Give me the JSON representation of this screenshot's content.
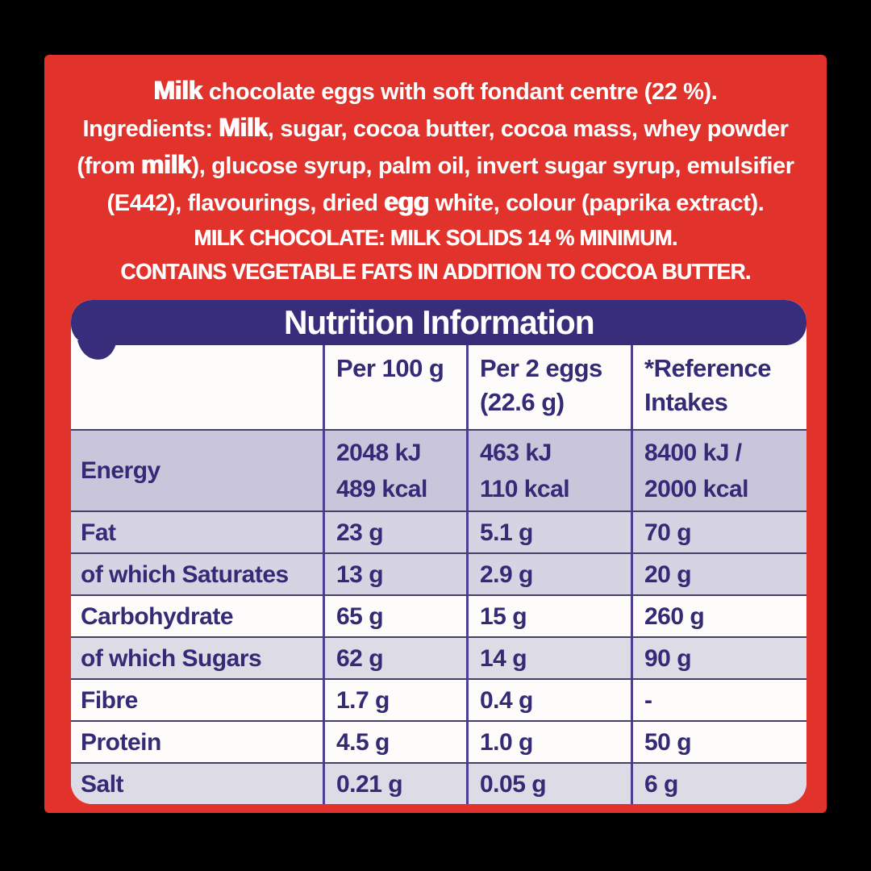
{
  "colors": {
    "bg": "#000000",
    "red": "#e1332c",
    "banner": "#382d7b",
    "ink": "#342a76",
    "divider": "#4c4095",
    "rule": "#474066",
    "panel": "#fdfcfa",
    "shade-dark": "#c9c6db",
    "shade-medium": "#d6d3e3",
    "shade-light": "#dddbe5"
  },
  "description": {
    "lines": [
      {
        "segments": [
          {
            "text": "Milk",
            "allergen": true
          },
          {
            "text": " chocolate eggs with soft fondant centre (22 %)."
          }
        ]
      },
      {
        "segments": [
          {
            "text": "Ingredients: "
          },
          {
            "text": "Milk",
            "allergen": true
          },
          {
            "text": ", sugar, cocoa butter, cocoa mass, whey powder"
          }
        ]
      },
      {
        "segments": [
          {
            "text": "(from "
          },
          {
            "text": "milk",
            "allergen": true
          },
          {
            "text": "), glucose syrup, palm oil, invert sugar syrup, emulsifier"
          }
        ]
      },
      {
        "segments": [
          {
            "text": "(E442), flavourings, dried "
          },
          {
            "text": "egg",
            "allergen": true
          },
          {
            "text": " white, colour (paprika extract)."
          }
        ]
      },
      {
        "caps": true,
        "segments": [
          {
            "text": "MILK CHOCOLATE: MILK SOLIDS 14 % MINIMUM."
          }
        ]
      },
      {
        "caps": true,
        "segments": [
          {
            "text": "CONTAINS VEGETABLE FATS IN ADDITION TO COCOA BUTTER."
          }
        ]
      }
    ]
  },
  "table": {
    "title": "Nutrition Information",
    "columns": [
      {
        "lines": []
      },
      {
        "lines": [
          "Per 100 g"
        ]
      },
      {
        "lines": [
          "Per 2 eggs",
          "(22.6 g)"
        ]
      },
      {
        "lines": [
          "*Reference",
          "Intakes"
        ]
      }
    ],
    "rows": [
      {
        "label": "Energy",
        "shade": "dark",
        "values": [
          [
            "2048 kJ",
            "489 kcal"
          ],
          [
            "463 kJ",
            "110 kcal"
          ],
          [
            "8400 kJ /",
            "2000 kcal"
          ]
        ]
      },
      {
        "label": "Fat",
        "shade": "medium",
        "values": [
          [
            "23 g"
          ],
          [
            "5.1 g"
          ],
          [
            "70 g"
          ]
        ]
      },
      {
        "label": "of which Saturates",
        "shade": "medium",
        "values": [
          [
            "13 g"
          ],
          [
            "2.9 g"
          ],
          [
            "20 g"
          ]
        ]
      },
      {
        "label": "Carbohydrate",
        "shade": "white",
        "values": [
          [
            "65 g"
          ],
          [
            "15 g"
          ],
          [
            "260 g"
          ]
        ]
      },
      {
        "label": "of which Sugars",
        "shade": "light",
        "values": [
          [
            "62 g"
          ],
          [
            "14 g"
          ],
          [
            "90 g"
          ]
        ]
      },
      {
        "label": "Fibre",
        "shade": "white",
        "values": [
          [
            "1.7 g"
          ],
          [
            "0.4 g"
          ],
          [
            "-"
          ]
        ]
      },
      {
        "label": "Protein",
        "shade": "white",
        "values": [
          [
            "4.5 g"
          ],
          [
            "1.0 g"
          ],
          [
            "50 g"
          ]
        ]
      },
      {
        "label": "Salt",
        "shade": "light",
        "values": [
          [
            "0.21 g"
          ],
          [
            "0.05 g"
          ],
          [
            "6 g"
          ]
        ]
      }
    ]
  }
}
